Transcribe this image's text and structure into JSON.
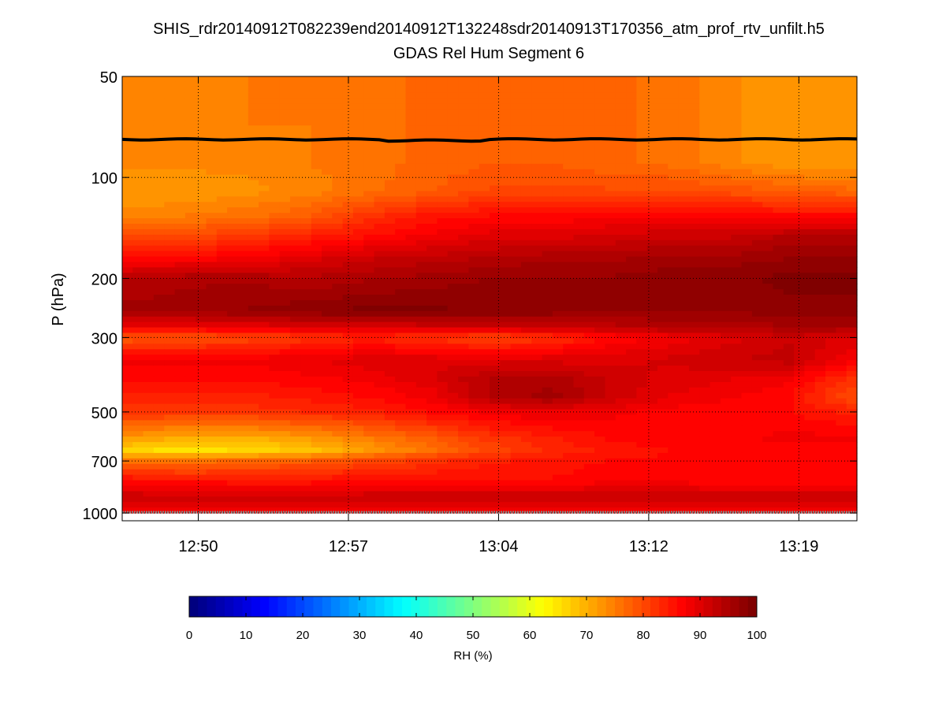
{
  "chart_data": {
    "type": "heatmap",
    "title": "SHIS_rdr20140912T082239end20140912T132248sdr20140913T170356_atm_prof_rtv_unfilt.h5",
    "subtitle": "GDAS Rel Hum Segment 6",
    "xlabel": "",
    "ylabel": "P (hPa)",
    "x_units": "minutes after 12:00",
    "xlim": [
      46.7,
      83.4
    ],
    "x_ticks": [
      50.5,
      58.0,
      65.5,
      73.0,
      80.5
    ],
    "x_tick_labels": [
      "12:50",
      "12:57",
      "13:04",
      "13:12",
      "13:19"
    ],
    "y_scale": "log",
    "y_reversed": true,
    "ylim": [
      50,
      1055
    ],
    "y_ticks": [
      50,
      100,
      200,
      300,
      500,
      700,
      1000
    ],
    "y_tick_labels": [
      "50",
      "100",
      "200",
      "300",
      "500",
      "700",
      "1000"
    ],
    "grid": true,
    "colormap": "jet",
    "clim": [
      0,
      100
    ],
    "colorbar": {
      "label": "RH (%)",
      "ticks": [
        0,
        10,
        20,
        30,
        40,
        50,
        60,
        70,
        80,
        90,
        100
      ],
      "tick_labels": [
        "0",
        "10",
        "20",
        "30",
        "40",
        "50",
        "60",
        "70",
        "80",
        "90",
        "100"
      ],
      "placement": "bottom"
    },
    "times": [
      47,
      50,
      53,
      56,
      59,
      62,
      65,
      68,
      71,
      74,
      77,
      80,
      83
    ],
    "pressures": [
      50,
      70,
      90,
      110,
      130,
      150,
      175,
      200,
      250,
      280,
      300,
      350,
      400,
      450,
      500,
      600,
      650,
      700,
      800,
      900,
      1000
    ],
    "rh": [
      [
        74,
        74,
        75,
        75,
        76,
        77,
        78,
        78,
        77,
        76,
        74,
        72,
        72
      ],
      [
        74,
        74,
        75,
        75,
        76,
        77,
        78,
        78,
        77,
        76,
        74,
        72,
        72
      ],
      [
        74,
        74,
        74,
        75,
        76,
        77,
        78,
        78,
        77,
        76,
        74,
        72,
        72
      ],
      [
        72,
        72,
        73,
        74,
        76,
        78,
        80,
        80,
        80,
        80,
        79,
        78,
        77
      ],
      [
        74,
        75,
        76,
        78,
        82,
        85,
        86,
        86,
        87,
        87,
        87,
        86,
        86
      ],
      [
        80,
        80,
        82,
        84,
        86,
        88,
        90,
        90,
        91,
        92,
        92,
        94,
        94
      ],
      [
        86,
        87,
        88,
        90,
        92,
        93,
        94,
        95,
        95,
        96,
        96,
        97,
        97
      ],
      [
        94,
        95,
        95,
        94,
        95,
        96,
        97,
        97,
        97,
        98,
        98,
        99,
        99
      ],
      [
        96,
        96,
        97,
        98,
        99,
        99,
        98,
        98,
        97,
        97,
        97,
        98,
        98
      ],
      [
        88,
        88,
        89,
        90,
        90,
        91,
        92,
        92,
        93,
        94,
        94,
        95,
        95
      ],
      [
        78,
        79,
        80,
        82,
        84,
        82,
        80,
        82,
        86,
        88,
        90,
        92,
        90
      ],
      [
        88,
        88,
        88,
        89,
        90,
        90,
        90,
        90,
        90,
        91,
        92,
        93,
        88
      ],
      [
        86,
        86,
        86,
        87,
        88,
        90,
        94,
        95,
        92,
        90,
        89,
        88,
        82
      ],
      [
        84,
        84,
        84,
        85,
        86,
        88,
        94,
        96,
        92,
        89,
        88,
        86,
        80
      ],
      [
        82,
        82,
        82,
        83,
        84,
        86,
        88,
        89,
        88,
        87,
        86,
        86,
        84
      ],
      [
        72,
        70,
        70,
        72,
        75,
        78,
        82,
        84,
        86,
        87,
        87,
        88,
        88
      ],
      [
        66,
        65,
        66,
        68,
        72,
        76,
        80,
        83,
        85,
        86,
        86,
        87,
        87
      ],
      [
        76,
        76,
        77,
        78,
        80,
        82,
        84,
        85,
        86,
        86,
        87,
        87,
        87
      ],
      [
        86,
        85,
        85,
        85,
        86,
        86,
        86,
        86,
        87,
        87,
        86,
        86,
        86
      ],
      [
        92,
        92,
        91,
        91,
        92,
        92,
        92,
        92,
        92,
        92,
        92,
        92,
        92
      ],
      [
        88,
        88,
        88,
        88,
        88,
        88,
        88,
        88,
        88,
        88,
        88,
        88,
        88
      ]
    ],
    "overlay_line": {
      "color": "#000000",
      "pressure_hPa": 77
    },
    "surface_markers": {
      "color": "#888888",
      "pressure_hPa": 1000
    }
  }
}
